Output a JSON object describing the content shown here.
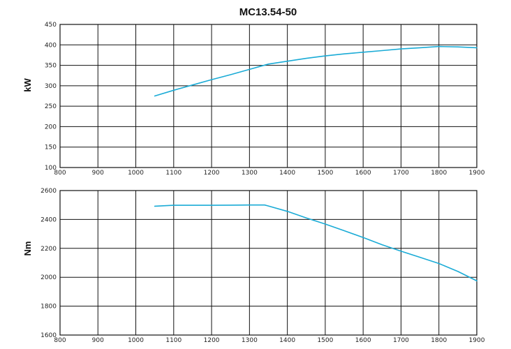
{
  "chart_data": {
    "title": "MC13.54-50",
    "line_color": "#1aabd6",
    "charts": [
      {
        "type": "line",
        "xlabel": "",
        "ylabel": "kW",
        "xlim": [
          800,
          1900
        ],
        "ylim": [
          100,
          450
        ],
        "x_ticks": [
          800,
          900,
          1000,
          1100,
          1200,
          1300,
          1400,
          1500,
          1600,
          1700,
          1800,
          1900
        ],
        "y_ticks": [
          100,
          150,
          200,
          250,
          300,
          350,
          400,
          450
        ],
        "grid": true,
        "series": [
          {
            "x": [
              1050,
              1100,
              1150,
              1200,
              1250,
              1300,
              1350,
              1400,
              1450,
              1500,
              1550,
              1600,
              1650,
              1700,
              1750,
              1800,
              1850,
              1900
            ],
            "y": [
              275,
              289,
              302,
              315,
              327,
              340,
              353,
              360,
              367,
              373,
              378,
              382,
              386,
              390,
              393,
              396,
              395,
              393
            ]
          }
        ]
      },
      {
        "type": "line",
        "xlabel": "",
        "ylabel": "Nm",
        "xlim": [
          800,
          1900
        ],
        "ylim": [
          1600,
          2600
        ],
        "x_ticks": [
          800,
          900,
          1000,
          1100,
          1200,
          1300,
          1400,
          1500,
          1600,
          1700,
          1800,
          1900
        ],
        "y_ticks": [
          1600,
          1800,
          2000,
          2200,
          2400,
          2600
        ],
        "grid": true,
        "series": [
          {
            "x": [
              1050,
              1100,
              1150,
              1200,
              1250,
              1300,
              1340,
              1350,
              1400,
              1450,
              1500,
              1550,
              1600,
              1650,
              1700,
              1750,
              1800,
              1850,
              1900
            ],
            "y": [
              2492,
              2498,
              2498,
              2498,
              2499,
              2500,
              2500,
              2493,
              2456,
              2410,
              2368,
              2322,
              2275,
              2225,
              2180,
              2138,
              2095,
              2040,
              1975
            ]
          }
        ]
      }
    ]
  }
}
